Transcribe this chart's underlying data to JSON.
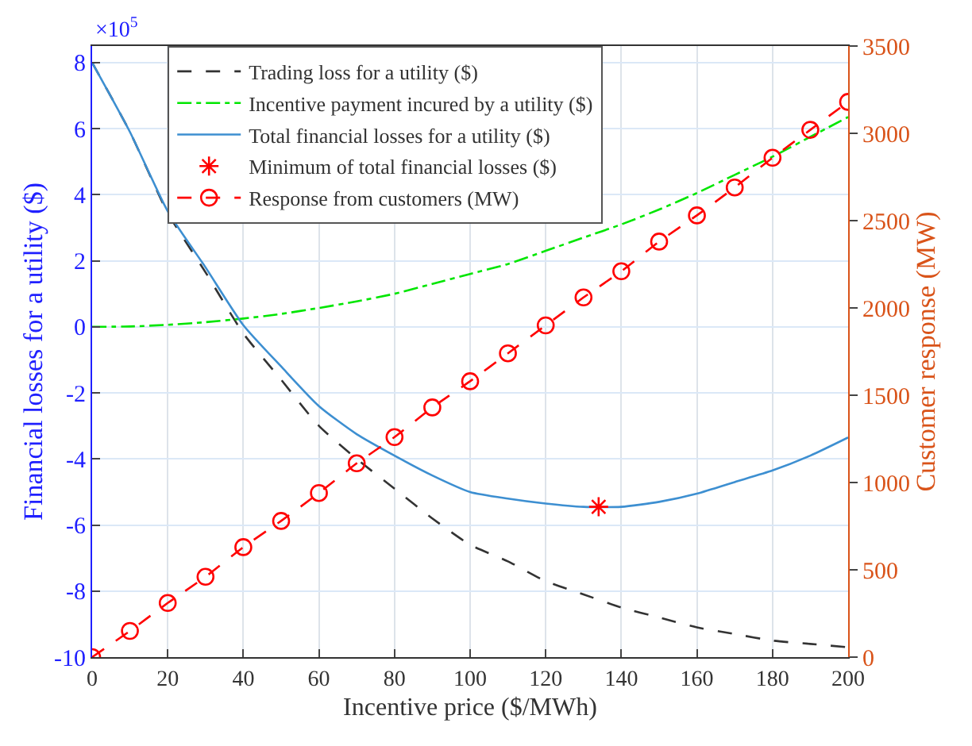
{
  "chart_data": {
    "type": "line",
    "xlabel": "Incentive price ($/MWh)",
    "ylabel": "Financial losses for a utility ($)",
    "y2label": "Customer response (MW)",
    "x": [
      0,
      10,
      20,
      30,
      40,
      50,
      60,
      70,
      80,
      90,
      100,
      110,
      120,
      130,
      140,
      150,
      160,
      170,
      180,
      190,
      200
    ],
    "xlim": [
      0,
      200
    ],
    "xticks": [
      0,
      20,
      40,
      60,
      80,
      100,
      120,
      140,
      160,
      180,
      200
    ],
    "ylim": [
      -10,
      8.5
    ],
    "yticks": [
      -10,
      -8,
      -6,
      -4,
      -2,
      0,
      2,
      4,
      6,
      8
    ],
    "y2lim": [
      0,
      3500
    ],
    "y2ticks": [
      0,
      500,
      1000,
      1500,
      2000,
      2500,
      3000,
      3500
    ],
    "annotations": [
      "×10$^{5}$"
    ],
    "grid": true,
    "legend": "top",
    "series": [
      {
        "name": "Trading loss for a utility ($)",
        "color": "#333333",
        "line_style": "dashed",
        "marker": "none",
        "values": [
          8.0,
          5.9,
          3.45,
          1.65,
          -0.2,
          -1.6,
          -3.0,
          -4.0,
          -4.9,
          -5.8,
          -6.6,
          -7.1,
          -7.7,
          -8.1,
          -8.5,
          -8.8,
          -9.1,
          -9.3,
          -9.5,
          -9.6,
          -9.7
        ]
      },
      {
        "name": "Incentive payment incured by a utility ($)",
        "color": "#00e600",
        "line_style": "dashdot",
        "marker": "none",
        "values": [
          0,
          0.01,
          0.06,
          0.14,
          0.25,
          0.39,
          0.57,
          0.77,
          1.0,
          1.3,
          1.6,
          1.9,
          2.3,
          2.7,
          3.1,
          3.55,
          4.05,
          4.6,
          5.15,
          5.75,
          6.35
        ]
      },
      {
        "name": "Total financial losses for a utility ($)",
        "color": "#3d8fd1",
        "line_style": "solid",
        "marker": "none",
        "values": [
          8.0,
          5.9,
          3.5,
          1.8,
          0.05,
          -1.2,
          -2.4,
          -3.25,
          -3.9,
          -4.5,
          -5.0,
          -5.2,
          -5.35,
          -5.45,
          -5.45,
          -5.3,
          -5.05,
          -4.7,
          -4.35,
          -3.9,
          -3.35
        ]
      },
      {
        "name": "Minimum of total financial losses ($)",
        "type": "scatter",
        "color": "#ff0000",
        "marker": "cross",
        "x": [
          134
        ],
        "values": [
          -5.45
        ]
      },
      {
        "name": "Response from customers (MW)",
        "axis": "y2",
        "color": "#ff0000",
        "line_style": "dashed",
        "marker": "circle",
        "values": [
          0,
          150,
          310,
          460,
          630,
          780,
          940,
          1110,
          1260,
          1430,
          1580,
          1740,
          1900,
          2060,
          2210,
          2380,
          2530,
          2690,
          2860,
          3020,
          3180
        ]
      }
    ]
  }
}
